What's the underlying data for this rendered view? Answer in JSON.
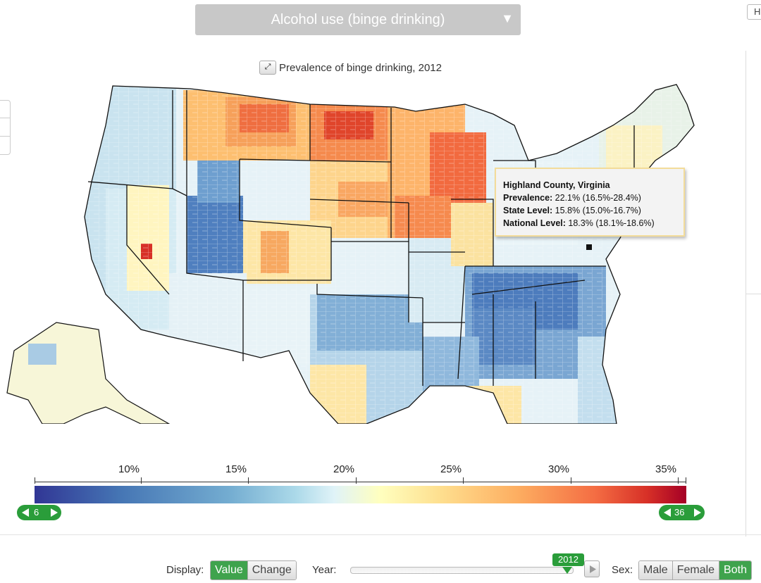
{
  "header": {
    "indicator_selected": "Alcohol use (binge drinking)",
    "help_label": "H"
  },
  "map": {
    "title": "Prevalence of binge drinking, 2012",
    "expand_icon": "expand-arrows-icon"
  },
  "tooltip": {
    "county": "Highland County, Virginia",
    "prevalence_label": "Prevalence:",
    "prevalence_value": "22.1% (16.5%-28.4%)",
    "state_label": "State Level:",
    "state_value": "15.8% (15.0%-16.7%)",
    "national_label": "National Level:",
    "national_value": "18.3% (18.1%-18.6%)"
  },
  "legend": {
    "ticks": [
      "10%",
      "15%",
      "20%",
      "25%",
      "30%",
      "35%"
    ],
    "min_value": "6",
    "max_value": "36",
    "colors": [
      "#313695",
      "#4575b4",
      "#74add1",
      "#abd9e9",
      "#e0f3f8",
      "#ffffbf",
      "#fee090",
      "#fdae61",
      "#f46d43",
      "#d73027",
      "#a50026"
    ]
  },
  "controls": {
    "display_label": "Display:",
    "display_options": [
      "Value",
      "Change"
    ],
    "display_selected": "Value",
    "year_label": "Year:",
    "year_value": "2012",
    "sex_label": "Sex:",
    "sex_options": [
      "Male",
      "Female",
      "Both"
    ],
    "sex_selected": "Both"
  }
}
